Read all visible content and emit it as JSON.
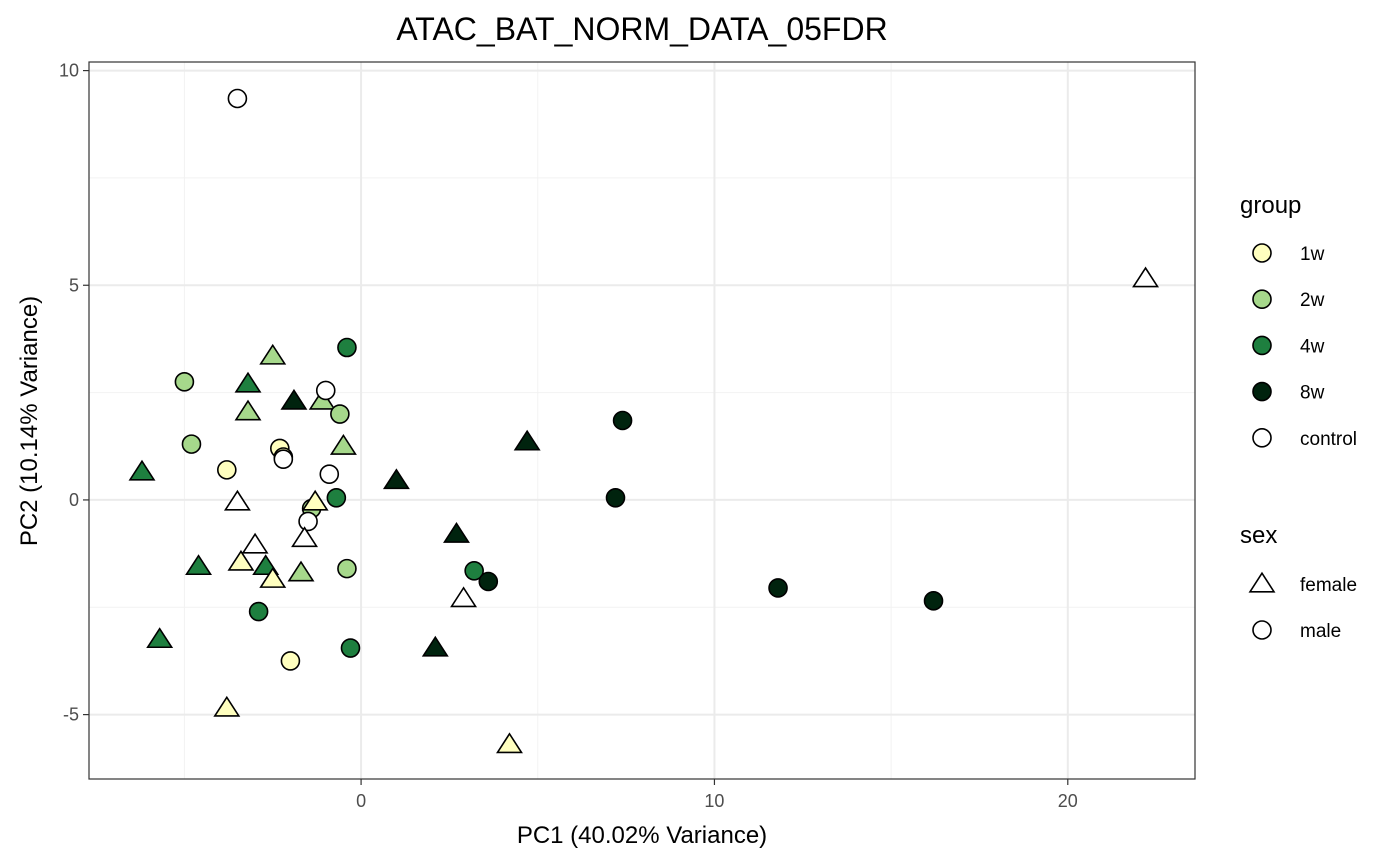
{
  "chart_data": {
    "type": "scatter",
    "title": "ATAC_BAT_NORM_DATA_05FDR",
    "xlabel": "PC1 (40.02% Variance)",
    "ylabel": "PC2 (10.14% Variance)",
    "xlim": [
      -7.7,
      23.6
    ],
    "ylim": [
      -6.5,
      10.2
    ],
    "x_ticks": [
      0,
      10,
      20
    ],
    "y_ticks": [
      -5,
      0,
      5,
      10
    ],
    "x_minor": [
      -5,
      5,
      15
    ],
    "y_minor": [
      -2.5,
      2.5,
      7.5
    ],
    "x_tick_labels": [
      "0",
      "10",
      "20"
    ],
    "y_tick_labels": [
      "-5",
      "0",
      "5",
      "10"
    ],
    "grid": true,
    "legend_position": "right",
    "legends": {
      "group": {
        "title": "group",
        "entries": [
          {
            "label": "1w",
            "color": "#FFFFBF"
          },
          {
            "label": "2w",
            "color": "#A6D88B"
          },
          {
            "label": "4w",
            "color": "#1E7F3F"
          },
          {
            "label": "8w",
            "color": "#00230E"
          },
          {
            "label": "control",
            "color": "#FFFFFF"
          }
        ]
      },
      "sex": {
        "title": "sex",
        "entries": [
          {
            "label": "female",
            "shape": "triangle"
          },
          {
            "label": "male",
            "shape": "circle"
          }
        ]
      }
    },
    "points": [
      {
        "x": -3.5,
        "y": 9.35,
        "group": "control",
        "sex": "male"
      },
      {
        "x": 22.2,
        "y": 5.15,
        "group": "control",
        "sex": "female"
      },
      {
        "x": -5.0,
        "y": 2.75,
        "group": "2w",
        "sex": "male"
      },
      {
        "x": -4.8,
        "y": 1.3,
        "group": "2w",
        "sex": "male"
      },
      {
        "x": -2.5,
        "y": 3.35,
        "group": "2w",
        "sex": "female"
      },
      {
        "x": -3.2,
        "y": 2.05,
        "group": "2w",
        "sex": "female"
      },
      {
        "x": -1.1,
        "y": 2.3,
        "group": "2w",
        "sex": "female"
      },
      {
        "x": -0.6,
        "y": 2.0,
        "group": "2w",
        "sex": "male"
      },
      {
        "x": -0.5,
        "y": 1.25,
        "group": "2w",
        "sex": "female"
      },
      {
        "x": -1.4,
        "y": -0.2,
        "group": "2w",
        "sex": "male"
      },
      {
        "x": -0.4,
        "y": -1.6,
        "group": "2w",
        "sex": "male"
      },
      {
        "x": -1.7,
        "y": -1.7,
        "group": "2w",
        "sex": "female"
      },
      {
        "x": -3.2,
        "y": 2.7,
        "group": "4w",
        "sex": "female"
      },
      {
        "x": -6.2,
        "y": 0.65,
        "group": "4w",
        "sex": "female"
      },
      {
        "x": -4.6,
        "y": -1.55,
        "group": "4w",
        "sex": "female"
      },
      {
        "x": -2.7,
        "y": -1.55,
        "group": "4w",
        "sex": "female"
      },
      {
        "x": -5.7,
        "y": -3.25,
        "group": "4w",
        "sex": "female"
      },
      {
        "x": -2.9,
        "y": -2.6,
        "group": "4w",
        "sex": "male"
      },
      {
        "x": -0.4,
        "y": 3.55,
        "group": "4w",
        "sex": "male"
      },
      {
        "x": -0.7,
        "y": 0.05,
        "group": "4w",
        "sex": "male"
      },
      {
        "x": 3.2,
        "y": -1.65,
        "group": "4w",
        "sex": "male"
      },
      {
        "x": -0.3,
        "y": -3.45,
        "group": "4w",
        "sex": "male"
      },
      {
        "x": -1.9,
        "y": 2.3,
        "group": "8w",
        "sex": "female"
      },
      {
        "x": 1.0,
        "y": 0.45,
        "group": "8w",
        "sex": "female"
      },
      {
        "x": 4.7,
        "y": 1.35,
        "group": "8w",
        "sex": "female"
      },
      {
        "x": 2.7,
        "y": -0.8,
        "group": "8w",
        "sex": "female"
      },
      {
        "x": 2.1,
        "y": -3.45,
        "group": "8w",
        "sex": "female"
      },
      {
        "x": 3.6,
        "y": -1.9,
        "group": "8w",
        "sex": "male"
      },
      {
        "x": 7.4,
        "y": 1.85,
        "group": "8w",
        "sex": "male"
      },
      {
        "x": 7.2,
        "y": 0.05,
        "group": "8w",
        "sex": "male"
      },
      {
        "x": 11.8,
        "y": -2.05,
        "group": "8w",
        "sex": "male"
      },
      {
        "x": 16.2,
        "y": -2.35,
        "group": "8w",
        "sex": "male"
      },
      {
        "x": -3.8,
        "y": 0.7,
        "group": "1w",
        "sex": "male"
      },
      {
        "x": -2.3,
        "y": 1.2,
        "group": "1w",
        "sex": "male"
      },
      {
        "x": -2.2,
        "y": 1.0,
        "group": "1w",
        "sex": "male"
      },
      {
        "x": -1.3,
        "y": -0.05,
        "group": "1w",
        "sex": "female"
      },
      {
        "x": -3.4,
        "y": -1.45,
        "group": "1w",
        "sex": "female"
      },
      {
        "x": -2.5,
        "y": -1.85,
        "group": "1w",
        "sex": "female"
      },
      {
        "x": -2.0,
        "y": -3.75,
        "group": "1w",
        "sex": "male"
      },
      {
        "x": -3.8,
        "y": -4.85,
        "group": "1w",
        "sex": "female"
      },
      {
        "x": 4.2,
        "y": -5.7,
        "group": "1w",
        "sex": "female"
      },
      {
        "x": -1.0,
        "y": 2.55,
        "group": "control",
        "sex": "male"
      },
      {
        "x": -2.2,
        "y": 0.95,
        "group": "control",
        "sex": "male"
      },
      {
        "x": -0.9,
        "y": 0.6,
        "group": "control",
        "sex": "male"
      },
      {
        "x": -3.5,
        "y": -0.05,
        "group": "control",
        "sex": "female"
      },
      {
        "x": -1.5,
        "y": -0.5,
        "group": "control",
        "sex": "male"
      },
      {
        "x": -3.0,
        "y": -1.05,
        "group": "control",
        "sex": "female"
      },
      {
        "x": -1.6,
        "y": -0.9,
        "group": "control",
        "sex": "female"
      },
      {
        "x": 2.9,
        "y": -2.3,
        "group": "control",
        "sex": "female"
      }
    ]
  }
}
